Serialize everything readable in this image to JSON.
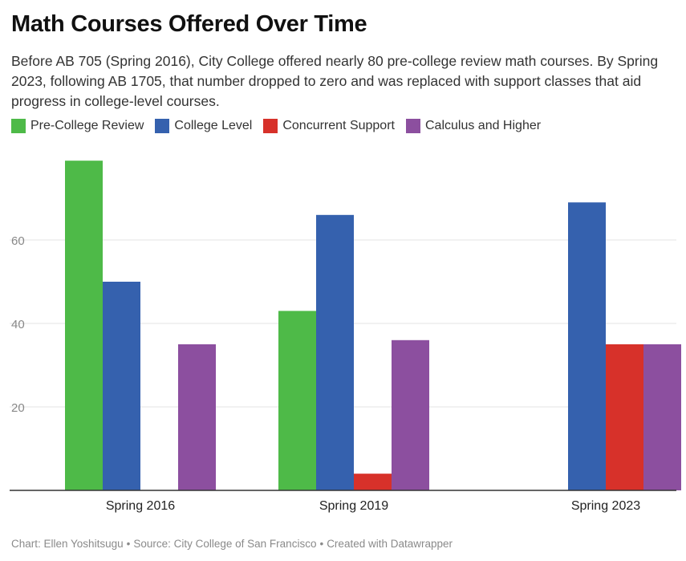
{
  "title": "Math Courses Offered Over Time",
  "subtitle": "Before AB 705 (Spring 2016), City College offered nearly 80 pre-college review math courses. By Spring 2023, following AB 1705, that number dropped to zero and was replaced with support classes that aid progress in college-level courses.",
  "footer": {
    "credit": "Chart: Ellen Yoshitsugu",
    "source": "Source: City College of San Francisco",
    "created": "Created with Datawrapper",
    "separator": "•"
  },
  "chart_data": {
    "type": "bar",
    "title": "Math Courses Offered Over Time",
    "categories": [
      "Spring 2016",
      "Spring 2019",
      "Spring 2023"
    ],
    "series": [
      {
        "name": "Pre-College Review",
        "color": "#4eba48",
        "values": [
          79,
          43,
          0
        ]
      },
      {
        "name": "College Level",
        "color": "#3561ae",
        "values": [
          50,
          66,
          69
        ]
      },
      {
        "name": "Concurrent Support",
        "color": "#d7312a",
        "values": [
          0,
          4,
          35
        ]
      },
      {
        "name": "Calculus and Higher",
        "color": "#8c4f9f",
        "values": [
          35,
          36,
          35
        ]
      }
    ],
    "yticks": [
      20,
      40,
      60
    ],
    "ylim": [
      0,
      80
    ],
    "xlabel": "",
    "ylabel": "",
    "grid": true,
    "legend": "top-left"
  }
}
